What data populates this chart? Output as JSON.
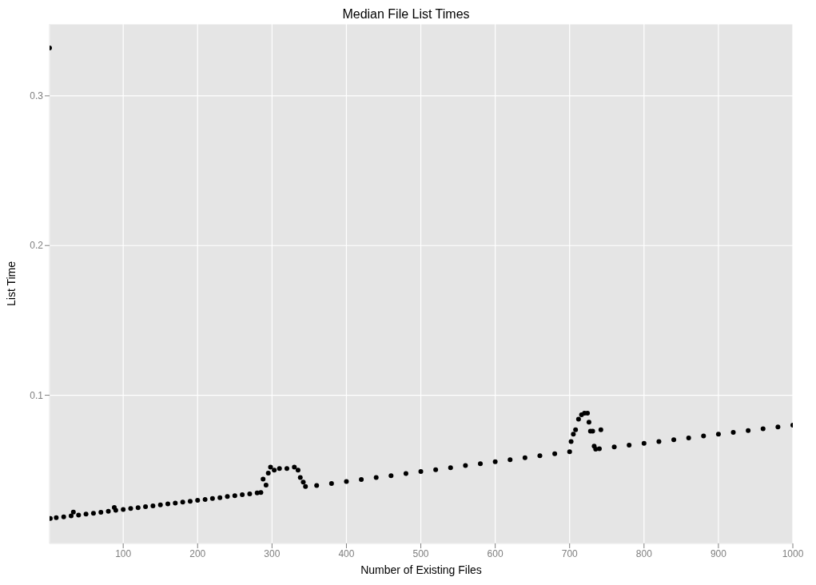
{
  "chart_data": {
    "type": "scatter",
    "title": "Median File List Times",
    "xlabel": "Number of Existing Files",
    "ylabel": "List Time",
    "xlim": [
      1,
      1000
    ],
    "ylim": [
      0.001,
      0.348
    ],
    "xticks": [
      100,
      200,
      300,
      400,
      500,
      600,
      700,
      800,
      900,
      1000
    ],
    "yticks": [
      0.1,
      0.2,
      0.3
    ],
    "grid": true,
    "marker": "circle",
    "series": [
      {
        "color": "#000000",
        "x": [
          1,
          2,
          10,
          20,
          30,
          33,
          40,
          50,
          60,
          70,
          80,
          88,
          90,
          100,
          110,
          120,
          130,
          140,
          150,
          160,
          170,
          180,
          190,
          200,
          210,
          220,
          230,
          240,
          250,
          260,
          270,
          280,
          285,
          288,
          292,
          295,
          298,
          303,
          310,
          320,
          330,
          335,
          338,
          342,
          345,
          360,
          380,
          400,
          420,
          440,
          460,
          480,
          500,
          520,
          540,
          560,
          580,
          600,
          620,
          640,
          660,
          680,
          700,
          702,
          705,
          708,
          712,
          716,
          720,
          724,
          726,
          728,
          731,
          733,
          735,
          740,
          742,
          760,
          780,
          800,
          820,
          840,
          860,
          880,
          900,
          920,
          940,
          960,
          980,
          1000
        ],
        "values": [
          0.332,
          0.0177,
          0.0182,
          0.0188,
          0.0194,
          0.022,
          0.02,
          0.0206,
          0.0212,
          0.0218,
          0.0225,
          0.025,
          0.0231,
          0.0237,
          0.0243,
          0.0249,
          0.0255,
          0.0261,
          0.0267,
          0.0274,
          0.028,
          0.0286,
          0.0292,
          0.0298,
          0.0304,
          0.031,
          0.0316,
          0.0323,
          0.0329,
          0.0335,
          0.0341,
          0.0347,
          0.035,
          0.044,
          0.04,
          0.048,
          0.052,
          0.05,
          0.051,
          0.051,
          0.052,
          0.05,
          0.045,
          0.042,
          0.039,
          0.0397,
          0.041,
          0.0424,
          0.0437,
          0.045,
          0.0463,
          0.0477,
          0.049,
          0.0503,
          0.0516,
          0.053,
          0.0543,
          0.0556,
          0.0569,
          0.0583,
          0.0596,
          0.0609,
          0.0622,
          0.069,
          0.074,
          0.077,
          0.084,
          0.087,
          0.088,
          0.088,
          0.082,
          0.076,
          0.076,
          0.066,
          0.064,
          0.0643,
          0.077,
          0.0655,
          0.0667,
          0.0679,
          0.0691,
          0.0703,
          0.0715,
          0.0728,
          0.074,
          0.0752,
          0.0764,
          0.0776,
          0.0788,
          0.08
        ]
      }
    ]
  }
}
